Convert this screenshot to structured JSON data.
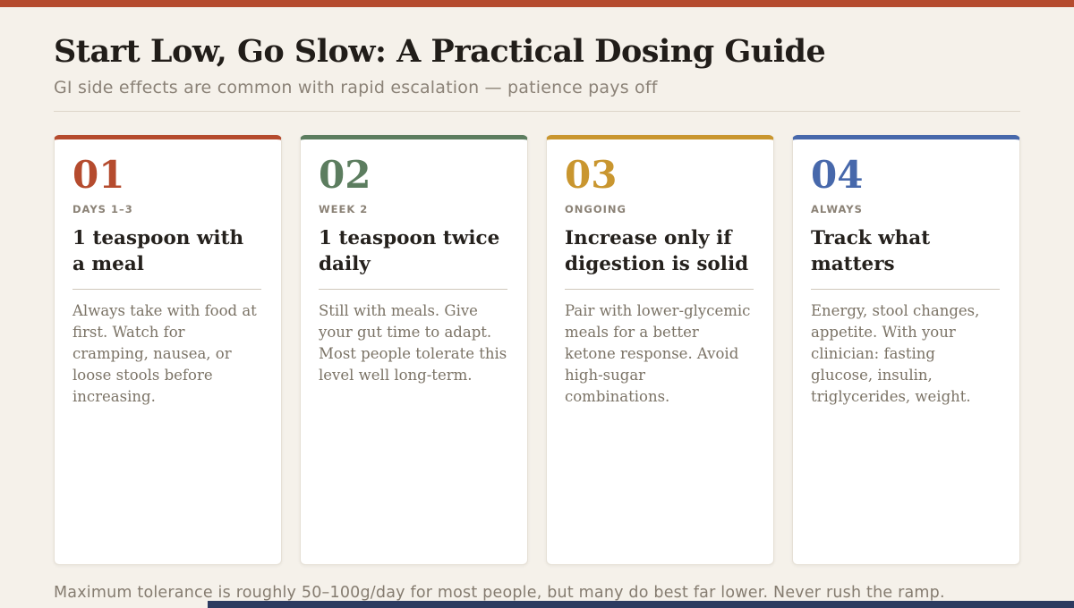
{
  "page": {
    "title": "Start Low, Go Slow: A Practical Dosing Guide",
    "subtitle": "GI side effects are common with rapid escalation — patience pays off",
    "footer": "Maximum tolerance is roughly 50–100g/day for most people, but many do best far lower. Never rush the ramp."
  },
  "colors": {
    "top_bar": "#b54b2e",
    "background": "#f5f1ea",
    "card_background": "#ffffff",
    "bottom_bar": "#2c3b60",
    "step_red": "#b54b2e",
    "step_green": "#5c7d5f",
    "step_gold": "#c9962f",
    "step_blue": "#4768ab"
  },
  "steps": [
    {
      "number": "01",
      "accent": "#b54b2e",
      "label": "DAYS 1–3",
      "heading": "1 teaspoon with a meal",
      "body": "Always take with food at first. Watch for cramping, nausea, or loose stools before increasing."
    },
    {
      "number": "02",
      "accent": "#5c7d5f",
      "label": "WEEK 2",
      "heading": "1 teaspoon twice daily",
      "body": "Still with meals. Give your gut time to adapt. Most people tolerate this level well long-term."
    },
    {
      "number": "03",
      "accent": "#c9962f",
      "label": "ONGOING",
      "heading": "Increase only if digestion is solid",
      "body": "Pair with lower-glycemic meals for a better ketone response. Avoid high-sugar combinations."
    },
    {
      "number": "04",
      "accent": "#4768ab",
      "label": "ALWAYS",
      "heading": "Track what matters",
      "body": "Energy, stool changes, appetite. With your clinician: fasting glucose, insulin, triglycerides, weight."
    }
  ]
}
